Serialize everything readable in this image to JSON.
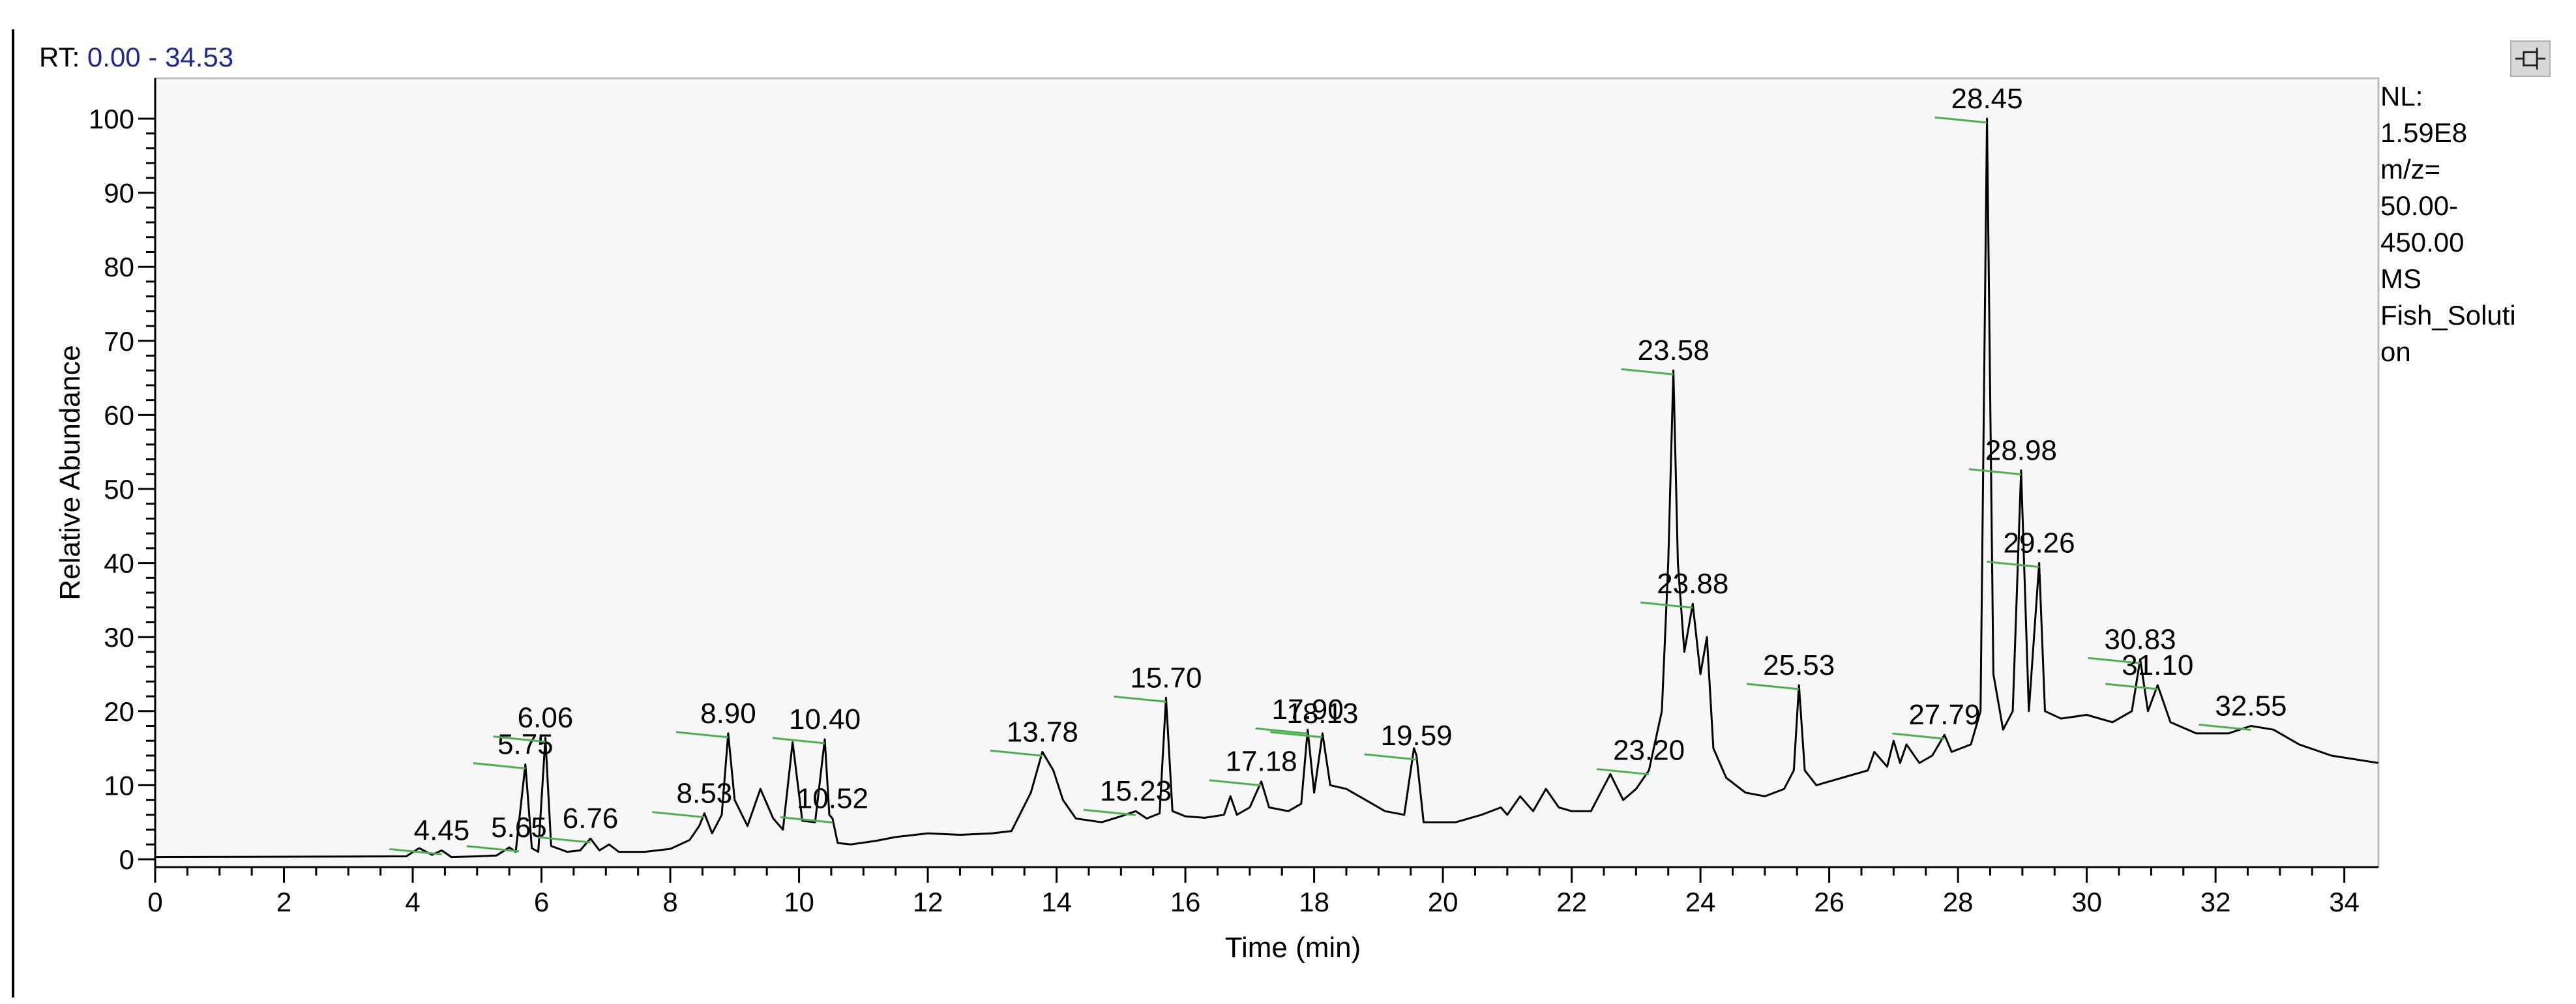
{
  "header": {
    "rt_prefix": "RT:",
    "rt_range": "0.00 - 34.53"
  },
  "info": {
    "lines": [
      "NL:",
      "1.59E8",
      "m/z=",
      "50.00-",
      "450.00",
      "MS",
      "Fish_Soluti",
      "on"
    ]
  },
  "pin_button": {
    "icon": "pin-icon"
  },
  "colors": {
    "trace": "#000000",
    "plot_border": "#bdbdbd",
    "plot_bg": "#f7f7f7",
    "peak_marker": "#4caf50",
    "rt_range": "#1f2a8a"
  },
  "chart_data": {
    "type": "line",
    "xlabel": "Time (min)",
    "ylabel": "Relative Abundance",
    "xlim": [
      0,
      34.53
    ],
    "ylim": [
      0,
      100
    ],
    "x_ticks": [
      0,
      2,
      4,
      6,
      8,
      10,
      12,
      14,
      16,
      18,
      20,
      22,
      24,
      26,
      28,
      30,
      32,
      34
    ],
    "y_ticks": [
      0,
      10,
      20,
      30,
      40,
      50,
      60,
      70,
      80,
      90,
      100
    ],
    "trace": [
      [
        0,
        0.3
      ],
      [
        3.9,
        0.4
      ],
      [
        4.1,
        1.5
      ],
      [
        4.3,
        0.6
      ],
      [
        4.45,
        1.2
      ],
      [
        4.6,
        0.3
      ],
      [
        5.0,
        0.4
      ],
      [
        5.3,
        0.5
      ],
      [
        5.5,
        1.6
      ],
      [
        5.6,
        1.0
      ],
      [
        5.75,
        12.8
      ],
      [
        5.85,
        1.5
      ],
      [
        5.95,
        1.0
      ],
      [
        6.06,
        16.4
      ],
      [
        6.15,
        1.8
      ],
      [
        6.4,
        1.0
      ],
      [
        6.6,
        1.2
      ],
      [
        6.76,
        2.8
      ],
      [
        6.9,
        1.2
      ],
      [
        7.05,
        2.0
      ],
      [
        7.2,
        1.0
      ],
      [
        7.6,
        1.0
      ],
      [
        8.0,
        1.4
      ],
      [
        8.3,
        2.6
      ],
      [
        8.45,
        4.5
      ],
      [
        8.53,
        6.2
      ],
      [
        8.65,
        3.5
      ],
      [
        8.8,
        6.0
      ],
      [
        8.9,
        17.0
      ],
      [
        9.0,
        8.0
      ],
      [
        9.2,
        4.5
      ],
      [
        9.4,
        9.5
      ],
      [
        9.6,
        5.5
      ],
      [
        9.75,
        4.0
      ],
      [
        9.9,
        15.8
      ],
      [
        10.05,
        5.2
      ],
      [
        10.25,
        5.0
      ],
      [
        10.4,
        16.2
      ],
      [
        10.47,
        6.0
      ],
      [
        10.52,
        5.5
      ],
      [
        10.6,
        2.2
      ],
      [
        10.8,
        2.0
      ],
      [
        11.2,
        2.5
      ],
      [
        11.5,
        3.0
      ],
      [
        12.0,
        3.5
      ],
      [
        12.5,
        3.3
      ],
      [
        13.0,
        3.5
      ],
      [
        13.3,
        3.8
      ],
      [
        13.6,
        9.0
      ],
      [
        13.78,
        14.5
      ],
      [
        13.95,
        12.0
      ],
      [
        14.1,
        8.0
      ],
      [
        14.3,
        5.5
      ],
      [
        14.7,
        5.0
      ],
      [
        15.0,
        5.8
      ],
      [
        15.23,
        6.5
      ],
      [
        15.4,
        5.5
      ],
      [
        15.6,
        6.2
      ],
      [
        15.7,
        21.8
      ],
      [
        15.8,
        6.5
      ],
      [
        16.0,
        5.8
      ],
      [
        16.3,
        5.6
      ],
      [
        16.6,
        6.0
      ],
      [
        16.7,
        8.5
      ],
      [
        16.8,
        6.0
      ],
      [
        17.0,
        7.0
      ],
      [
        17.18,
        10.5
      ],
      [
        17.3,
        7.0
      ],
      [
        17.6,
        6.5
      ],
      [
        17.8,
        7.5
      ],
      [
        17.9,
        17.5
      ],
      [
        18.0,
        9.0
      ],
      [
        18.13,
        17.0
      ],
      [
        18.25,
        10.0
      ],
      [
        18.5,
        9.5
      ],
      [
        18.8,
        8.0
      ],
      [
        19.1,
        6.5
      ],
      [
        19.4,
        6.0
      ],
      [
        19.55,
        15.0
      ],
      [
        19.59,
        14.0
      ],
      [
        19.7,
        5.0
      ],
      [
        20.2,
        5.0
      ],
      [
        20.6,
        6.0
      ],
      [
        20.9,
        7.0
      ],
      [
        21.0,
        6.0
      ],
      [
        21.2,
        8.5
      ],
      [
        21.4,
        6.5
      ],
      [
        21.6,
        9.5
      ],
      [
        21.8,
        7.0
      ],
      [
        22.0,
        6.5
      ],
      [
        22.3,
        6.5
      ],
      [
        22.6,
        11.5
      ],
      [
        22.8,
        8.0
      ],
      [
        23.0,
        9.5
      ],
      [
        23.2,
        12.0
      ],
      [
        23.4,
        20.0
      ],
      [
        23.5,
        40.0
      ],
      [
        23.58,
        66.0
      ],
      [
        23.65,
        40.0
      ],
      [
        23.75,
        28.0
      ],
      [
        23.88,
        34.5
      ],
      [
        24.0,
        25.0
      ],
      [
        24.1,
        30.0
      ],
      [
        24.2,
        15.0
      ],
      [
        24.4,
        11.0
      ],
      [
        24.7,
        9.0
      ],
      [
        25.0,
        8.5
      ],
      [
        25.3,
        9.5
      ],
      [
        25.45,
        12.0
      ],
      [
        25.53,
        23.5
      ],
      [
        25.62,
        12.0
      ],
      [
        25.8,
        10.0
      ],
      [
        26.2,
        11.0
      ],
      [
        26.6,
        12.0
      ],
      [
        26.7,
        14.5
      ],
      [
        26.9,
        12.5
      ],
      [
        27.0,
        16.0
      ],
      [
        27.1,
        13.0
      ],
      [
        27.2,
        15.5
      ],
      [
        27.4,
        13.0
      ],
      [
        27.6,
        14.0
      ],
      [
        27.79,
        16.8
      ],
      [
        27.9,
        14.5
      ],
      [
        28.2,
        15.5
      ],
      [
        28.35,
        20.0
      ],
      [
        28.45,
        100.0
      ],
      [
        28.55,
        25.0
      ],
      [
        28.7,
        17.5
      ],
      [
        28.85,
        20.0
      ],
      [
        28.98,
        52.5
      ],
      [
        29.1,
        20.0
      ],
      [
        29.26,
        40.0
      ],
      [
        29.35,
        20.0
      ],
      [
        29.6,
        19.0
      ],
      [
        30.0,
        19.5
      ],
      [
        30.4,
        18.5
      ],
      [
        30.7,
        20.0
      ],
      [
        30.83,
        27.0
      ],
      [
        30.95,
        20.0
      ],
      [
        31.1,
        23.5
      ],
      [
        31.3,
        18.5
      ],
      [
        31.7,
        17.0
      ],
      [
        32.2,
        17.0
      ],
      [
        32.55,
        18.0
      ],
      [
        32.9,
        17.5
      ],
      [
        33.3,
        15.5
      ],
      [
        33.8,
        14.0
      ],
      [
        34.53,
        13.0
      ]
    ],
    "peak_labels": [
      {
        "label": "4.45",
        "x": 4.45,
        "y": 1.2
      },
      {
        "label": "5.65",
        "x": 5.65,
        "y": 1.6
      },
      {
        "label": "5.75",
        "x": 5.75,
        "y": 12.8
      },
      {
        "label": "6.06",
        "x": 6.06,
        "y": 16.4
      },
      {
        "label": "6.76",
        "x": 6.76,
        "y": 2.8
      },
      {
        "label": "8.53",
        "x": 8.53,
        "y": 6.2
      },
      {
        "label": "8.90",
        "x": 8.9,
        "y": 17.0
      },
      {
        "label": "10.40",
        "x": 10.4,
        "y": 16.2
      },
      {
        "label": "10.52",
        "x": 10.52,
        "y": 5.5
      },
      {
        "label": "13.78",
        "x": 13.78,
        "y": 14.5
      },
      {
        "label": "15.23",
        "x": 15.23,
        "y": 6.5
      },
      {
        "label": "15.70",
        "x": 15.7,
        "y": 21.8
      },
      {
        "label": "17.18",
        "x": 17.18,
        "y": 10.5
      },
      {
        "label": "17.90",
        "x": 17.9,
        "y": 17.5
      },
      {
        "label": "18.13",
        "x": 18.13,
        "y": 17.0
      },
      {
        "label": "19.59",
        "x": 19.59,
        "y": 14.0
      },
      {
        "label": "23.20",
        "x": 23.2,
        "y": 12.0
      },
      {
        "label": "23.58",
        "x": 23.58,
        "y": 66.0
      },
      {
        "label": "23.88",
        "x": 23.88,
        "y": 34.5
      },
      {
        "label": "25.53",
        "x": 25.53,
        "y": 23.5
      },
      {
        "label": "27.79",
        "x": 27.79,
        "y": 16.8
      },
      {
        "label": "28.45",
        "x": 28.45,
        "y": 100.0
      },
      {
        "label": "28.98",
        "x": 28.98,
        "y": 52.5
      },
      {
        "label": "29.26",
        "x": 29.26,
        "y": 40.0
      },
      {
        "label": "30.83",
        "x": 30.83,
        "y": 27.0
      },
      {
        "label": "31.10",
        "x": 31.1,
        "y": 23.5
      },
      {
        "label": "32.55",
        "x": 32.55,
        "y": 18.0
      }
    ]
  }
}
